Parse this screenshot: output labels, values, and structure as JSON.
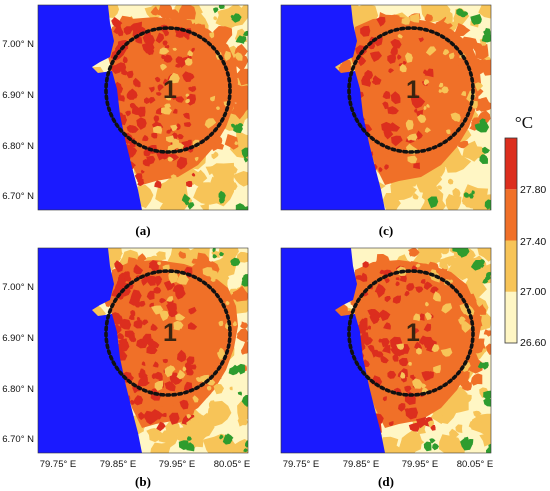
{
  "colors": {
    "sea": "#1a1aff",
    "land_cool": "#fff6c4",
    "land_warm": "#f7c458",
    "urban": "#f07028",
    "urban_hot": "#dc2e1e",
    "vegetation": "#2e9c2e",
    "circle": "#111111"
  },
  "map": {
    "lat_ticks": [
      "7.00° N",
      "6.90° N",
      "6.80° N",
      "6.70° N"
    ],
    "lon_ticks": [
      "79.75° E",
      "79.85° E",
      "79.95° E",
      "80.05° E"
    ],
    "zone_label": "1",
    "panels": [
      {
        "label": "(a)",
        "hot_coverage": 0.55
      },
      {
        "label": "(c)",
        "hot_coverage": 0.2
      },
      {
        "label": "(b)",
        "hot_coverage": 0.5
      },
      {
        "label": "(d)",
        "hot_coverage": 0.4
      }
    ]
  },
  "legend": {
    "unit": "°C",
    "ticks": [
      "27.80",
      "27.40",
      "27.00",
      "26.60"
    ],
    "bins": [
      {
        "from": 26.6,
        "to": 27.0,
        "color": "#fff6c4"
      },
      {
        "from": 27.0,
        "to": 27.4,
        "color": "#f7c458"
      },
      {
        "from": 27.4,
        "to": 27.8,
        "color": "#f07028"
      },
      {
        "from": 27.8,
        "to": 28.2,
        "color": "#dc2e1e"
      }
    ]
  }
}
